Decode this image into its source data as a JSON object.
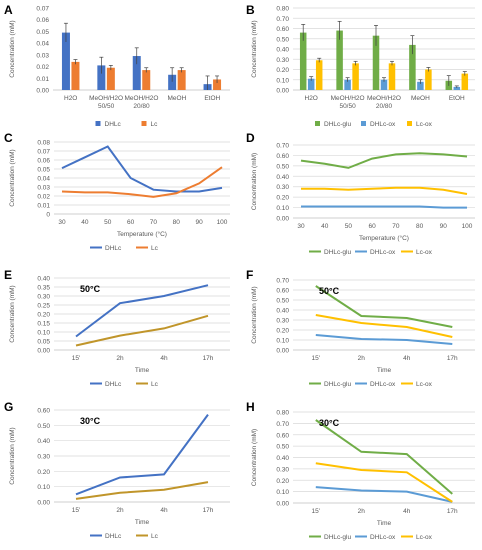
{
  "colors": {
    "DHLc": "#4472C4",
    "Lc": "#ED7D31",
    "Lc_line": "#C0952A",
    "DHLc_glu": "#70AD47",
    "DHLc_ox": "#5B9BD5",
    "Lc_ox": "#FFC000",
    "grid": "#d9d9d9",
    "axis": "#bfbfbf",
    "text": "#595959"
  },
  "chart_data": [
    {
      "panel": "A",
      "type": "bar",
      "categories": [
        "H2O",
        "MeOH/H2O\n50/50",
        "MeOH/H2O\n20/80",
        "MeOH",
        "EtOH"
      ],
      "ylabel": "Concentration (mM)",
      "xlabel": "",
      "ylim": [
        0,
        0.07
      ],
      "yticks": [
        "0.00",
        "0.01",
        "0.02",
        "0.03",
        "0.04",
        "0.05",
        "0.06",
        "0.07"
      ],
      "grid": false,
      "legend": "bottom",
      "series": [
        {
          "name": "DHLc",
          "color_key": "DHLc",
          "values": [
            0.049,
            0.021,
            0.029,
            0.013,
            0.005
          ],
          "errors": [
            0.008,
            0.007,
            0.007,
            0.006,
            0.007
          ]
        },
        {
          "name": "Lc",
          "color_key": "Lc",
          "values": [
            0.024,
            0.019,
            0.017,
            0.017,
            0.009
          ],
          "errors": [
            0.002,
            0.002,
            0.002,
            0.002,
            0.003
          ]
        }
      ]
    },
    {
      "panel": "B",
      "type": "bar",
      "categories": [
        "H2O",
        "MeOH/H2O\n50/50",
        "MeOH/H2O\n20/80",
        "MeOH",
        "EtOH"
      ],
      "ylabel": "Concentration (mM)",
      "xlabel": "",
      "ylim": [
        0,
        0.8
      ],
      "yticks": [
        "0.00",
        "0.10",
        "0.20",
        "0.30",
        "0.40",
        "0.50",
        "0.60",
        "0.70",
        "0.80"
      ],
      "grid": true,
      "legend": "bottom",
      "series": [
        {
          "name": "DHLc-glu",
          "color_key": "DHLc_glu",
          "values": [
            0.56,
            0.58,
            0.53,
            0.44,
            0.09
          ],
          "errors": [
            0.08,
            0.09,
            0.1,
            0.09,
            0.05
          ]
        },
        {
          "name": "DHLc-ox",
          "color_key": "DHLc_ox",
          "values": [
            0.11,
            0.1,
            0.1,
            0.08,
            0.03
          ],
          "errors": [
            0.02,
            0.02,
            0.02,
            0.02,
            0.01
          ]
        },
        {
          "name": "Lc-ox",
          "color_key": "Lc_ox",
          "values": [
            0.29,
            0.26,
            0.26,
            0.2,
            0.16
          ],
          "errors": [
            0.02,
            0.02,
            0.02,
            0.02,
            0.02
          ]
        }
      ]
    },
    {
      "panel": "C",
      "type": "line",
      "x": [
        30,
        40,
        50,
        60,
        70,
        80,
        90,
        100
      ],
      "ylabel": "Concentration (mM)",
      "xlabel": "Temperature (°C)",
      "ylim": [
        0,
        0.08
      ],
      "yticks": [
        "0",
        "0.01",
        "0.02",
        "0.03",
        "0.04",
        "0.05",
        "0.06",
        "0.07",
        "0.08"
      ],
      "grid": true,
      "legend": "bottom",
      "series": [
        {
          "name": "DHLc",
          "color_key": "DHLc",
          "values": [
            0.051,
            0.063,
            0.075,
            0.04,
            0.027,
            0.025,
            0.025,
            0.029
          ]
        },
        {
          "name": "Lc",
          "color_key": "Lc",
          "values": [
            0.025,
            0.024,
            0.024,
            0.022,
            0.019,
            0.023,
            0.034,
            0.052
          ]
        }
      ]
    },
    {
      "panel": "D",
      "type": "line",
      "x": [
        30,
        40,
        50,
        60,
        70,
        80,
        90,
        100
      ],
      "ylabel": "Concentration (mM)",
      "xlabel": "Temperature (°C)",
      "ylim": [
        0,
        0.7
      ],
      "yticks": [
        "0.00",
        "0.10",
        "0.20",
        "0.30",
        "0.40",
        "0.50",
        "0.60",
        "0.70"
      ],
      "grid": true,
      "legend": "bottom",
      "series": [
        {
          "name": "DHLc-glu",
          "color_key": "DHLc_glu",
          "values": [
            0.55,
            0.52,
            0.48,
            0.57,
            0.61,
            0.62,
            0.61,
            0.59
          ]
        },
        {
          "name": "DHLc-ox",
          "color_key": "DHLc_ox",
          "values": [
            0.11,
            0.11,
            0.11,
            0.11,
            0.11,
            0.11,
            0.1,
            0.1
          ]
        },
        {
          "name": "Lc-ox",
          "color_key": "Lc_ox",
          "values": [
            0.28,
            0.28,
            0.27,
            0.28,
            0.29,
            0.29,
            0.27,
            0.23
          ]
        }
      ]
    },
    {
      "panel": "E",
      "type": "line",
      "annotation": "50°C",
      "categories": [
        "15'",
        "2h",
        "4h",
        "17h"
      ],
      "ylabel": "Concentration (mM)",
      "xlabel": "Time",
      "ylim": [
        0,
        0.4
      ],
      "yticks": [
        "0.00",
        "0.05",
        "0.10",
        "0.15",
        "0.20",
        "0.25",
        "0.30",
        "0.35",
        "0.40"
      ],
      "grid": true,
      "legend": "bottom",
      "series": [
        {
          "name": "DHLc",
          "color_key": "DHLc",
          "values": [
            0.075,
            0.26,
            0.3,
            0.36
          ]
        },
        {
          "name": "Lc",
          "color_key": "Lc_line",
          "values": [
            0.025,
            0.08,
            0.12,
            0.19
          ]
        }
      ]
    },
    {
      "panel": "F",
      "type": "line",
      "annotation": "50°C",
      "categories": [
        "15'",
        "2h",
        "4h",
        "17h"
      ],
      "ylabel": "Concentration (mM)",
      "xlabel": "Time",
      "ylim": [
        0,
        0.7
      ],
      "yticks": [
        "0.00",
        "0.10",
        "0.20",
        "0.30",
        "0.40",
        "0.50",
        "0.60",
        "0.70"
      ],
      "grid": true,
      "legend": "bottom",
      "series": [
        {
          "name": "DHLc-glu",
          "color_key": "DHLc_glu",
          "values": [
            0.64,
            0.34,
            0.32,
            0.23
          ]
        },
        {
          "name": "DHLc-ox",
          "color_key": "DHLc_ox",
          "values": [
            0.15,
            0.11,
            0.1,
            0.06
          ]
        },
        {
          "name": "Lc-ox",
          "color_key": "Lc_ox",
          "values": [
            0.35,
            0.27,
            0.23,
            0.13
          ]
        }
      ]
    },
    {
      "panel": "G",
      "type": "line",
      "annotation": "30°C",
      "categories": [
        "15'",
        "2h",
        "4h",
        "17h"
      ],
      "ylabel": "Concentration (mM)",
      "xlabel": "Time",
      "ylim": [
        0,
        0.6
      ],
      "yticks": [
        "0.00",
        "0.10",
        "0.20",
        "0.30",
        "0.40",
        "0.50",
        "0.60"
      ],
      "grid": true,
      "legend": "bottom",
      "series": [
        {
          "name": "DHLc",
          "color_key": "DHLc",
          "values": [
            0.05,
            0.16,
            0.18,
            0.57
          ]
        },
        {
          "name": "Lc",
          "color_key": "Lc_line",
          "values": [
            0.02,
            0.06,
            0.08,
            0.13
          ]
        }
      ]
    },
    {
      "panel": "H",
      "type": "line",
      "annotation": "30°C",
      "categories": [
        "15'",
        "2h",
        "4h",
        "17h"
      ],
      "ylabel": "Concentration (mM)",
      "xlabel": "Time",
      "ylim": [
        0,
        0.8
      ],
      "yticks": [
        "0.00",
        "0.10",
        "0.20",
        "0.30",
        "0.40",
        "0.50",
        "0.60",
        "0.70",
        "0.80"
      ],
      "grid": true,
      "legend": "bottom",
      "series": [
        {
          "name": "DHLc-glu",
          "color_key": "DHLc_glu",
          "values": [
            0.73,
            0.45,
            0.43,
            0.08
          ]
        },
        {
          "name": "DHLc-ox",
          "color_key": "DHLc_ox",
          "values": [
            0.14,
            0.11,
            0.1,
            0.01
          ]
        },
        {
          "name": "Lc-ox",
          "color_key": "Lc_ox",
          "values": [
            0.35,
            0.29,
            0.27,
            0.01
          ]
        }
      ]
    }
  ]
}
